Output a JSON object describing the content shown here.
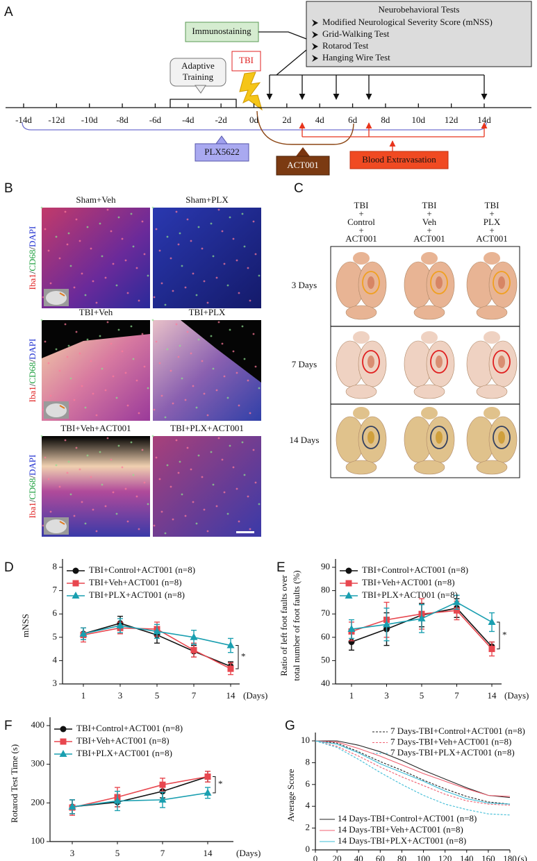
{
  "panel_labels": [
    "A",
    "B",
    "C",
    "D",
    "E",
    "F",
    "G"
  ],
  "timeline": {
    "tests_title": "Neurobehavioral Tests",
    "tests": [
      "Modified Neurological Severity Score (mNSS)",
      "Grid-Walking Test",
      "Rotarod Test",
      "Hanging Wire Test"
    ],
    "immunostaining": "Immunostaining",
    "tbi": "TBI",
    "adaptive_training": [
      "Adaptive",
      "Training"
    ],
    "days": [
      "-14d",
      "-12d",
      "-10d",
      "-8d",
      "-6d",
      "-4d",
      "-2d",
      "0d",
      "2d",
      "4d",
      "6d",
      "8d",
      "10d",
      "12d",
      "14d"
    ],
    "plx": "PLX5622",
    "act001": "ACT001",
    "blood": "Blood Extravasation"
  },
  "microscopy": {
    "stain": [
      "Iba1",
      "CD68",
      "DAPI"
    ],
    "separator": "/",
    "panels": [
      "Sham+Veh",
      "Sham+PLX",
      "TBI+Veh",
      "TBI+PLX",
      "TBI+Veh+ACT001",
      "TBI+PLX+ACT001"
    ]
  },
  "brain_photos": {
    "columns": [
      [
        "TBI",
        "+",
        "Control",
        "+",
        "ACT001"
      ],
      [
        "TBI",
        "+",
        "Veh",
        "+",
        "ACT001"
      ],
      [
        "TBI",
        "+",
        "PLX",
        "+",
        "ACT001"
      ]
    ],
    "rows": [
      "3 Days",
      "7 Days",
      "14 Days"
    ]
  },
  "chart_data": [
    {
      "type": "line",
      "y_label": "mNSS",
      "x_label": "(Days)",
      "categories": [
        "1",
        "3",
        "5",
        "7",
        "14"
      ],
      "ylim": [
        3,
        8
      ],
      "yticks": [
        3,
        4,
        5,
        6,
        7,
        8
      ],
      "legend": "upper left",
      "annotation": "*",
      "series": [
        {
          "name": "TBI+Control+ACT001 (n=8)",
          "color": "#111111",
          "marker": "circle",
          "values": [
            5.15,
            5.6,
            5.1,
            4.4,
            3.75
          ],
          "errors": [
            0.25,
            0.3,
            0.35,
            0.25,
            0.2
          ]
        },
        {
          "name": "TBI+Veh+ACT001 (n=8)",
          "color": "#e8474f",
          "marker": "square",
          "values": [
            5.1,
            5.4,
            5.35,
            4.45,
            3.65
          ],
          "errors": [
            0.3,
            0.25,
            0.3,
            0.3,
            0.25
          ]
        },
        {
          "name": "TBI+PLX+ACT001 (n=8)",
          "color": "#1a9fb0",
          "marker": "triangle",
          "values": [
            5.15,
            5.5,
            5.25,
            5.0,
            4.65
          ],
          "errors": [
            0.25,
            0.3,
            0.3,
            0.3,
            0.3
          ]
        }
      ]
    },
    {
      "type": "line",
      "y_label": [
        "Ratio of left foot faults over",
        "total number of foot faults (%)"
      ],
      "x_label": "(Days)",
      "categories": [
        "1",
        "3",
        "5",
        "7",
        "14"
      ],
      "ylim": [
        40,
        90
      ],
      "yticks": [
        40,
        50,
        60,
        70,
        80,
        90
      ],
      "legend": "upper left",
      "annotation": "*",
      "series": [
        {
          "name": "TBI+Control+ACT001 (n=8)",
          "color": "#111111",
          "marker": "circle",
          "values": [
            58,
            63.5,
            69.5,
            72.5,
            56
          ],
          "errors": [
            3.5,
            7,
            5,
            4,
            2
          ]
        },
        {
          "name": "TBI+Veh+ACT001 (n=8)",
          "color": "#e8474f",
          "marker": "square",
          "values": [
            62.5,
            67.5,
            70,
            71.5,
            55
          ],
          "errors": [
            4,
            7.5,
            6.5,
            4,
            3
          ]
        },
        {
          "name": "TBI+PLX+ACT001 (n=8)",
          "color": "#1a9fb0",
          "marker": "triangle",
          "values": [
            63.5,
            65.5,
            68,
            75,
            66.5
          ],
          "errors": [
            4,
            7,
            6,
            3,
            4
          ]
        }
      ]
    },
    {
      "type": "line",
      "y_label": "Rotarod Test Time (s)",
      "x_label": "(Days)",
      "categories": [
        "3",
        "5",
        "7",
        "14"
      ],
      "ylim": [
        100,
        400
      ],
      "yticks": [
        100,
        200,
        300,
        400
      ],
      "legend": "upper left",
      "annotation": "*",
      "series": [
        {
          "name": "TBI+Control+ACT001 (n=8)",
          "color": "#111111",
          "marker": "circle",
          "values": [
            190,
            202,
            230,
            268
          ],
          "errors": [
            18,
            12,
            17,
            14
          ]
        },
        {
          "name": "TBI+Veh+ACT001 (n=8)",
          "color": "#e8474f",
          "marker": "square",
          "values": [
            188,
            215,
            247,
            268
          ],
          "errors": [
            20,
            25,
            17,
            14
          ]
        },
        {
          "name": "TBI+PLX+ACT001 (n=8)",
          "color": "#1a9fb0",
          "marker": "triangle",
          "values": [
            190,
            205,
            208,
            226
          ],
          "errors": [
            18,
            25,
            20,
            14
          ]
        }
      ]
    },
    {
      "type": "line",
      "y_label": "Average Score",
      "x_label": "(s)",
      "x": [
        0,
        20,
        40,
        60,
        80,
        100,
        120,
        140,
        160,
        180
      ],
      "xlim": [
        0,
        180
      ],
      "xticks": [
        0,
        20,
        40,
        60,
        80,
        100,
        120,
        140,
        160,
        180
      ],
      "ylim": [
        0,
        10
      ],
      "yticks": [
        0,
        2,
        4,
        6,
        8,
        10
      ],
      "series": [
        {
          "name": "7 Days-TBI+Control+ACT001 (n=8)",
          "color": "#222222",
          "dashed": true,
          "values": [
            10,
            9.8,
            9.0,
            8.1,
            7.3,
            6.4,
            5.6,
            4.9,
            4.4,
            4.2
          ]
        },
        {
          "name": "7 Days-TBI+Veh+ACT001 (n=8)",
          "color": "#f06070",
          "dashed": true,
          "values": [
            10,
            9.5,
            8.6,
            7.6,
            6.7,
            5.9,
            5.1,
            4.5,
            4.2,
            4.1
          ]
        },
        {
          "name": "7 Days-TBI+PLX+ACT001 (n=8)",
          "color": "#3cbcd6",
          "dashed": true,
          "values": [
            10,
            9.4,
            8.3,
            7.1,
            6.0,
            5.0,
            4.2,
            3.7,
            3.3,
            3.2
          ]
        },
        {
          "name": "14 Days-TBI+Control+ACT001 (n=8)",
          "color": "#222222",
          "dashed": false,
          "values": [
            10,
            10,
            9.6,
            9.0,
            8.2,
            7.3,
            6.5,
            5.7,
            5.0,
            4.8
          ]
        },
        {
          "name": "14 Days-TBI+Veh+ACT001 (n=8)",
          "color": "#f06070",
          "dashed": false,
          "values": [
            10,
            9.9,
            9.3,
            8.6,
            7.8,
            7.0,
            6.3,
            5.6,
            5.0,
            4.9
          ]
        },
        {
          "name": "14 Days-TBI+PLX+ACT001 (n=8)",
          "color": "#3cbcd6",
          "dashed": false,
          "values": [
            10,
            9.7,
            8.9,
            7.9,
            7.1,
            6.3,
            5.4,
            4.7,
            4.3,
            4.2
          ]
        }
      ]
    }
  ]
}
